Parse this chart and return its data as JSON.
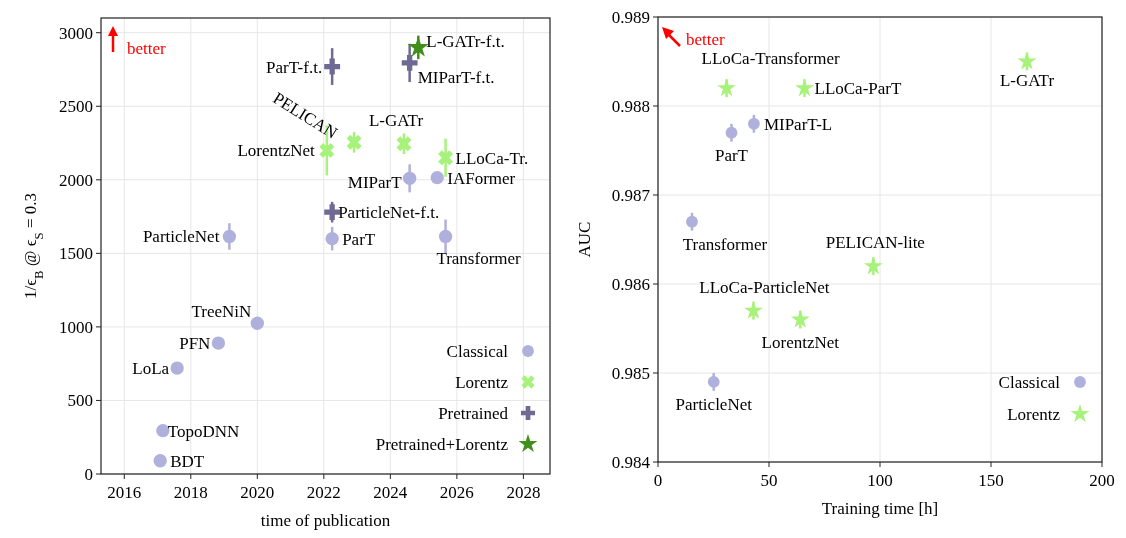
{
  "chart_data": [
    {
      "type": "scatter",
      "xlabel": "time of publication",
      "ylabel": "1/ϵ$_{B}$ @ ϵ$_{S}$ = 0.3",
      "xlim": [
        2015.3,
        2028.8
      ],
      "ylim": [
        0,
        3100
      ],
      "xticks": [
        2016,
        2018,
        2020,
        2022,
        2024,
        2026,
        2028
      ],
      "yticks": [
        0,
        500,
        1000,
        1500,
        2000,
        2500,
        3000
      ],
      "grid": true,
      "legend": "bottom right",
      "series": [
        {
          "name": "Classical",
          "color": "#b0b0dc",
          "marker": "circle",
          "x": [
            2019.16,
            2022.25,
            2025.66,
            2024.58,
            2025.41,
            2020.0,
            2018.83,
            2017.59,
            2017.16,
            2017.08
          ],
          "values": [
            1615,
            1600,
            1615,
            2010,
            2015,
            1025,
            890,
            720,
            295,
            90
          ],
          "errors": [
            90,
            80,
            115,
            95,
            null,
            null,
            null,
            null,
            null,
            null
          ]
        },
        {
          "name": "Lorentz",
          "color": "#a6f27a",
          "marker": "cross",
          "x": [
            2022.09,
            2022.91,
            2024.41,
            2025.66
          ],
          "values": [
            2200,
            2255,
            2245,
            2150
          ],
          "errors": [
            170,
            70,
            70,
            130
          ]
        },
        {
          "name": "Pretrained",
          "color": "#6e6a94",
          "marker": "plus",
          "x": [
            2022.25,
            2024.58,
            2022.25
          ],
          "values": [
            2770,
            2795,
            1780
          ],
          "errors": [
            125,
            130,
            70
          ]
        },
        {
          "name": "Pretrained+Lorentz",
          "color": "#3f8f1a",
          "marker": "star",
          "x": [
            2024.84
          ],
          "values": [
            2900
          ],
          "errors": [
            80
          ]
        }
      ],
      "annotations": [
        "better",
        {
          "text": "ParticleNet",
          "x": 2019.16,
          "y": 1615
        },
        {
          "text": "ParT",
          "x": 2022.25,
          "y": 1600
        },
        {
          "text": "Transformer",
          "x": 2025.66,
          "y": 1615
        },
        {
          "text": "MIParT",
          "x": 2024.58,
          "y": 2010
        },
        {
          "text": "IAFormer",
          "x": 2025.41,
          "y": 2015
        },
        {
          "text": "TreeNiN",
          "x": 2020.0,
          "y": 1025
        },
        {
          "text": "PFN",
          "x": 2018.83,
          "y": 890
        },
        {
          "text": "LoLa",
          "x": 2017.59,
          "y": 720
        },
        {
          "text": "TopoDNN",
          "x": 2017.16,
          "y": 295
        },
        {
          "text": "BDT",
          "x": 2017.08,
          "y": 90
        },
        {
          "text": "LorentzNet",
          "x": 2022.09,
          "y": 2200
        },
        {
          "text": "PELICAN",
          "x": 2022.91,
          "y": 2255
        },
        {
          "text": "L-GATr",
          "x": 2024.41,
          "y": 2245
        },
        {
          "text": "LLoCa-Tr.",
          "x": 2025.66,
          "y": 2150
        },
        {
          "text": "ParT-f.t.",
          "x": 2022.25,
          "y": 2770
        },
        {
          "text": "MIParT-f.t.",
          "x": 2024.58,
          "y": 2795
        },
        {
          "text": "ParticleNet-f.t.",
          "x": 2022.25,
          "y": 1780
        },
        {
          "text": "L-GATr-f.t.",
          "x": 2024.84,
          "y": 2900
        }
      ]
    },
    {
      "type": "scatter",
      "xlabel": "Training time [h]",
      "ylabel": "AUC",
      "xlim": [
        0,
        200
      ],
      "ylim": [
        0.984,
        0.989
      ],
      "xticks": [
        0,
        50,
        100,
        150,
        200
      ],
      "yticks": [
        0.984,
        0.985,
        0.986,
        0.987,
        0.988,
        0.989
      ],
      "grid": true,
      "legend": "bottom right",
      "series": [
        {
          "name": "Classical",
          "color": "#b0b0dc",
          "marker": "circle",
          "x": [
            43.2,
            33.1,
            15.3,
            25.1
          ],
          "values": [
            0.9878,
            0.9877,
            0.9867,
            0.9849
          ],
          "errors": [
            0.0001,
            0.0001,
            0.0001,
            0.0001
          ]
        },
        {
          "name": "Lorentz",
          "color": "#a6f27a",
          "marker": "star",
          "x": [
            30.9,
            66.0,
            166.2,
            97.0,
            43.0,
            64.1
          ],
          "values": [
            0.9882,
            0.9882,
            0.9885,
            0.9862,
            0.9857,
            0.9856
          ],
          "errors": [
            0.0001,
            0.0001,
            0.0001,
            0.0001,
            0.0001,
            0.0001
          ]
        }
      ],
      "annotations": [
        "better",
        {
          "text": "LLoCa-Transformer",
          "x": 30.9,
          "y": 0.9882
        },
        {
          "text": "LLoCa-ParT",
          "x": 66.0,
          "y": 0.9882
        },
        {
          "text": "L-GATr",
          "x": 166.2,
          "y": 0.9885
        },
        {
          "text": "MIParT-L",
          "x": 43.2,
          "y": 0.9878
        },
        {
          "text": "ParT",
          "x": 33.1,
          "y": 0.9877
        },
        {
          "text": "Transformer",
          "x": 15.3,
          "y": 0.9867
        },
        {
          "text": "PELICAN-lite",
          "x": 97.0,
          "y": 0.9862
        },
        {
          "text": "LLoCa-ParticleNet",
          "x": 43.0,
          "y": 0.9857
        },
        {
          "text": "LorentzNet",
          "x": 64.1,
          "y": 0.9856
        },
        {
          "text": "ParticleNet",
          "x": 25.1,
          "y": 0.9849
        }
      ]
    }
  ]
}
